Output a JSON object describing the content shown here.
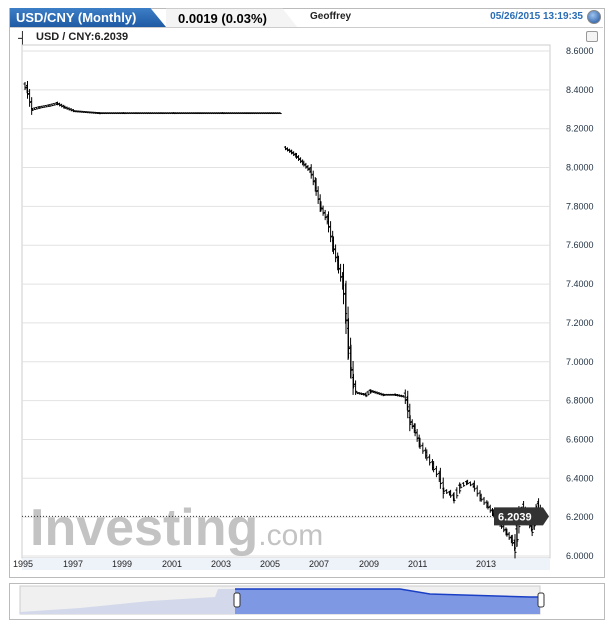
{
  "header": {
    "title": "USD/CNY (Monthly)",
    "change": "0.0019 (0.03%)",
    "author": "Geoffrey",
    "timestamp": "05/26/2015 13:19:35"
  },
  "legend": {
    "label": "USD / CNY:6.2039"
  },
  "watermark": "Investing.com",
  "chart_data": {
    "type": "ohlc",
    "title": "USD/CNY (Monthly)",
    "xlabel": "",
    "ylabel": "",
    "ylim": [
      6.0,
      8.6
    ],
    "y_ticks": [
      "8.6000",
      "8.4000",
      "8.2000",
      "8.0000",
      "7.8000",
      "7.6000",
      "7.4000",
      "7.2000",
      "7.0000",
      "6.8000",
      "6.6000",
      "6.4000",
      "6.2000",
      "6.0000"
    ],
    "x_ticks": [
      "1995",
      "1997",
      "1999",
      "2001",
      "2003",
      "2005",
      "2007",
      "2009",
      "2011",
      "2013"
    ],
    "last_value": "6.2039",
    "grid": true,
    "points": [
      [
        1995.0,
        8.42
      ],
      [
        1995.1,
        8.4
      ],
      [
        1995.3,
        8.3
      ],
      [
        1995.6,
        8.31
      ],
      [
        1996.0,
        8.32
      ],
      [
        1996.3,
        8.33
      ],
      [
        1996.6,
        8.31
      ],
      [
        1997.0,
        8.29
      ],
      [
        1998.0,
        8.28
      ],
      [
        1999.0,
        8.28
      ],
      [
        2001.0,
        8.28
      ],
      [
        2003.0,
        8.28
      ],
      [
        2005.4,
        8.28
      ],
      [
        2005.55,
        8.1
      ],
      [
        2005.8,
        8.08
      ],
      [
        2006.0,
        8.06
      ],
      [
        2006.3,
        8.02
      ],
      [
        2006.6,
        7.98
      ],
      [
        2006.8,
        7.9
      ],
      [
        2007.0,
        7.8
      ],
      [
        2007.3,
        7.72
      ],
      [
        2007.5,
        7.6
      ],
      [
        2007.7,
        7.5
      ],
      [
        2007.9,
        7.4
      ],
      [
        2008.0,
        7.28
      ],
      [
        2008.1,
        7.12
      ],
      [
        2008.2,
        7.0
      ],
      [
        2008.3,
        6.9
      ],
      [
        2008.45,
        6.84
      ],
      [
        2008.8,
        6.83
      ],
      [
        2009.0,
        6.85
      ],
      [
        2009.5,
        6.83
      ],
      [
        2010.0,
        6.83
      ],
      [
        2010.4,
        6.82
      ],
      [
        2010.5,
        6.78
      ],
      [
        2010.6,
        6.7
      ],
      [
        2010.8,
        6.65
      ],
      [
        2011.0,
        6.58
      ],
      [
        2011.2,
        6.52
      ],
      [
        2011.4,
        6.46
      ],
      [
        2011.6,
        6.4
      ],
      [
        2011.7,
        6.34
      ],
      [
        2011.9,
        6.32
      ],
      [
        2012.0,
        6.3
      ],
      [
        2012.2,
        6.36
      ],
      [
        2012.4,
        6.38
      ],
      [
        2012.6,
        6.36
      ],
      [
        2012.8,
        6.3
      ],
      [
        2013.0,
        6.26
      ],
      [
        2013.2,
        6.22
      ],
      [
        2013.5,
        6.16
      ],
      [
        2013.7,
        6.12
      ],
      [
        2013.9,
        6.08
      ],
      [
        2014.0,
        6.05
      ],
      [
        2014.1,
        6.12
      ],
      [
        2014.25,
        6.24
      ],
      [
        2014.4,
        6.25
      ],
      [
        2014.6,
        6.18
      ],
      [
        2014.8,
        6.14
      ],
      [
        2014.9,
        6.18
      ],
      [
        2015.0,
        6.23
      ],
      [
        2015.1,
        6.26
      ],
      [
        2015.25,
        6.2
      ],
      [
        2015.4,
        6.2039
      ]
    ]
  },
  "colors": {
    "accent": "#2a6db5",
    "navigator_fill": "#7f98e3",
    "navigator_line": "#1a3fc4"
  }
}
